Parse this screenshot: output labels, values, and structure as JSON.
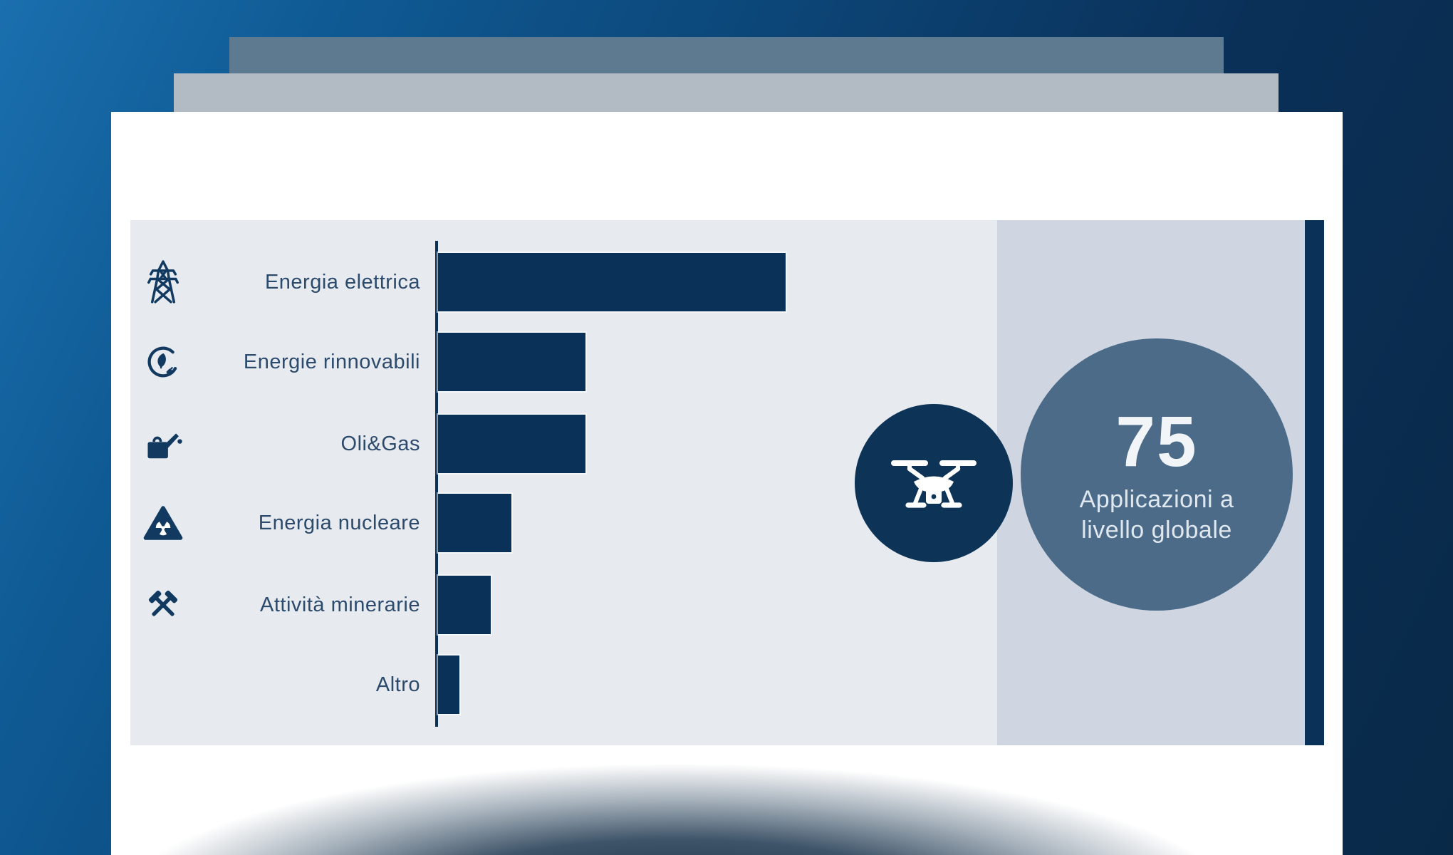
{
  "chart_data": {
    "type": "bar",
    "orientation": "horizontal",
    "title": "",
    "xlabel": "",
    "ylabel": "",
    "categories": [
      "Energia elettrica",
      "Energie rinnovabili",
      "Oli&Gas",
      "Energia nucleare",
      "Attività minerarie",
      "Altro"
    ],
    "values": [
      33,
      14,
      14,
      7,
      5,
      2
    ],
    "xlim": [
      0,
      34
    ],
    "grid": false,
    "legend": false,
    "bar_color": "#0a3157",
    "icons": [
      "transmission-tower-icon",
      "renewable-energy-icon",
      "oil-can-icon",
      "nuclear-radiation-icon",
      "mining-hammers-icon",
      null
    ]
  },
  "callout": {
    "value": "75",
    "label_line1": "Applicazioni a",
    "label_line2": "livello globale",
    "badge_icon": "drone-icon"
  },
  "colors": {
    "navy": "#0a3157",
    "panel_left": "#e7ebf0",
    "panel_right": "#cfd6e1",
    "big_circle": "#4b6b89",
    "label_text": "#2c4a6b",
    "background_gradient_start": "#1a6fae",
    "background_gradient_end": "#092947",
    "stacked_layer_slate": "#5d7a90",
    "stacked_layer_gray": "#b2bac3"
  }
}
